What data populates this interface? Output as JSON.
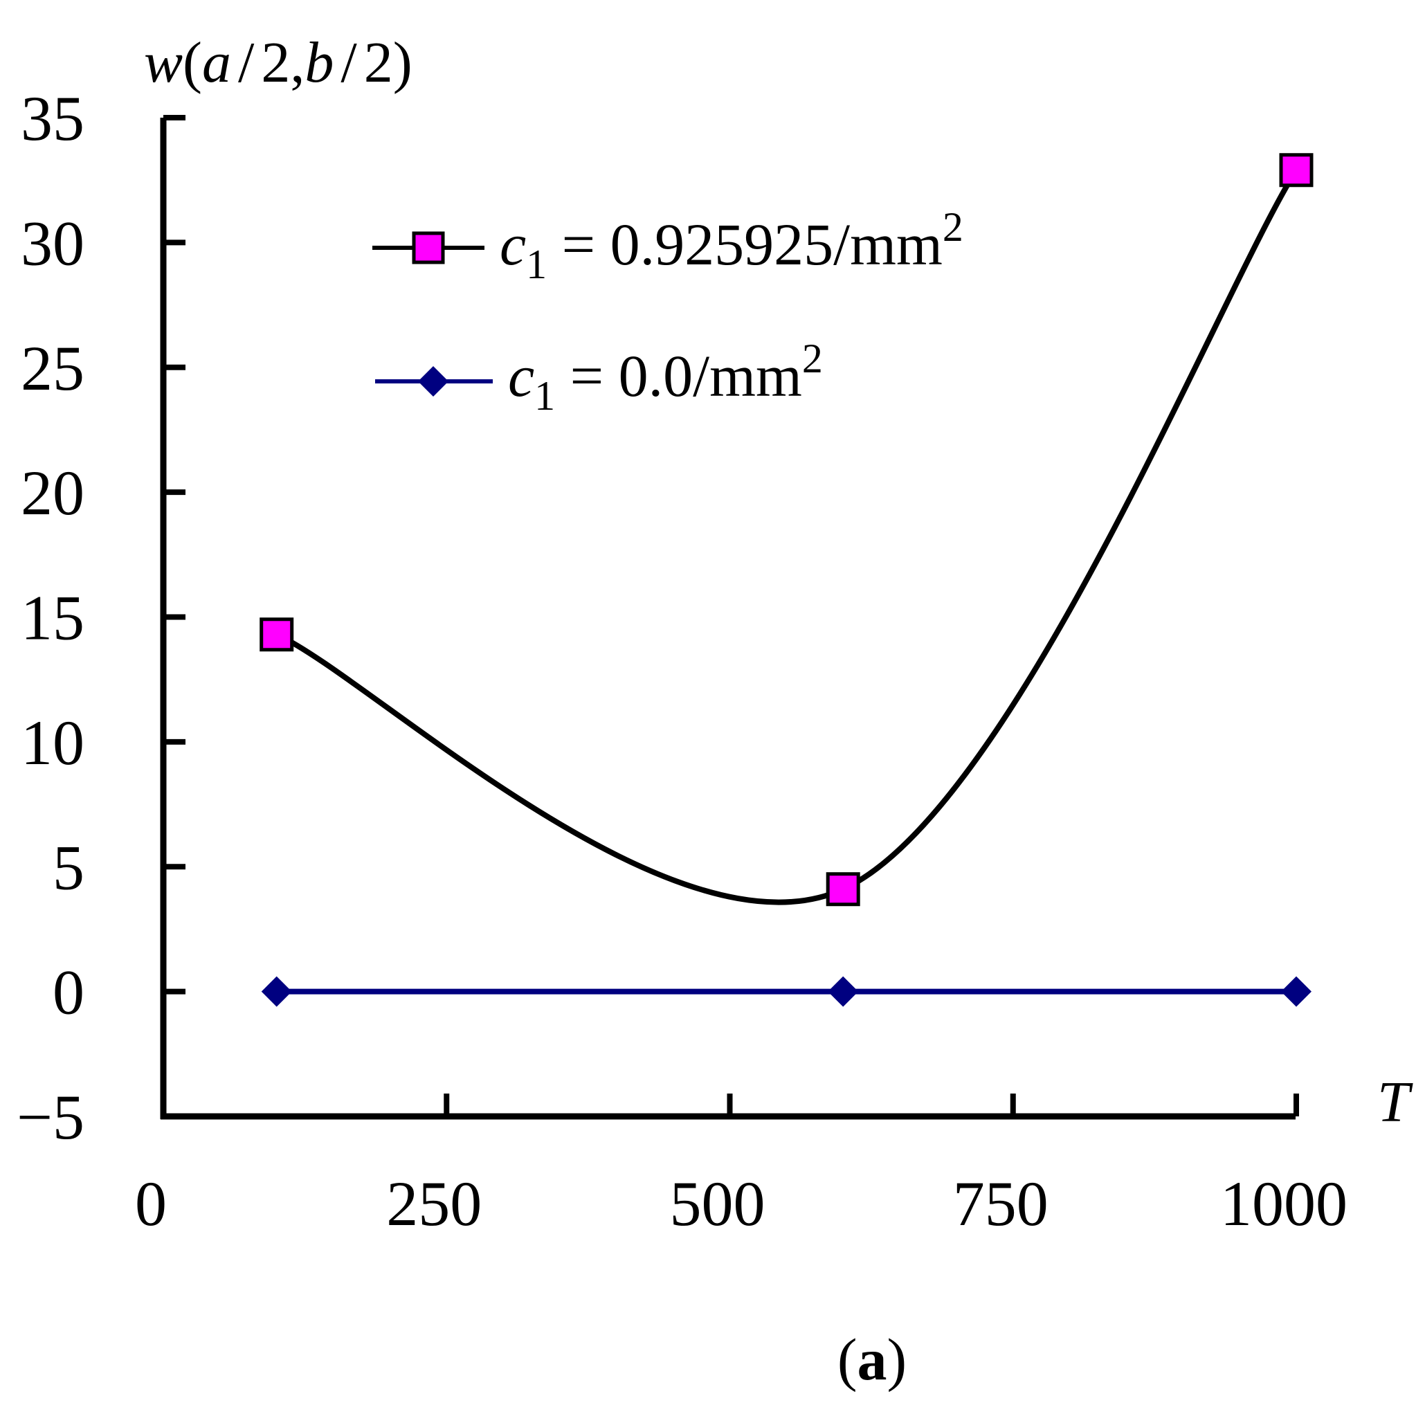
{
  "chart_data": {
    "type": "line",
    "title": "",
    "xlabel": "T",
    "ylabel_parts": [
      "w",
      "(",
      "a",
      "/",
      "2",
      ",",
      "b",
      "/",
      "2",
      ")"
    ],
    "xlim": [
      0,
      1000
    ],
    "ylim": [
      -5,
      35
    ],
    "xticks": [
      0,
      250,
      500,
      750,
      1000
    ],
    "yticks": [
      -5,
      0,
      5,
      10,
      15,
      20,
      25,
      30,
      35
    ],
    "xtick_labels": [
      "0",
      "250",
      "500",
      "750",
      "1000"
    ],
    "ytick_labels": [
      "−5",
      "0",
      "5",
      "10",
      "15",
      "20",
      "25",
      "30",
      "35"
    ],
    "grid": false,
    "legend_position": "top-center",
    "series": [
      {
        "name": "c1 = 0.925925/mm2",
        "legend": {
          "var": "c",
          "sub": "1",
          "rest": " = 0.925925/mm",
          "sup": "2"
        },
        "x": [
          100,
          600,
          1000
        ],
        "y": [
          14.3,
          4.1,
          32.9
        ],
        "line_color": "#000000",
        "marker": "square",
        "marker_fill": "#ff00ff",
        "smooth": true
      },
      {
        "name": "c1 = 0.0/mm2",
        "legend": {
          "var": "c",
          "sub": "1",
          "rest": " = 0.0/mm",
          "sup": "2"
        },
        "x": [
          100,
          600,
          1000
        ],
        "y": [
          0,
          0,
          0
        ],
        "line_color": "#000080",
        "marker": "diamond",
        "marker_fill": "#000080",
        "smooth": false
      }
    ],
    "caption": {
      "open": "(",
      "letter": "a",
      "close": ")"
    }
  }
}
